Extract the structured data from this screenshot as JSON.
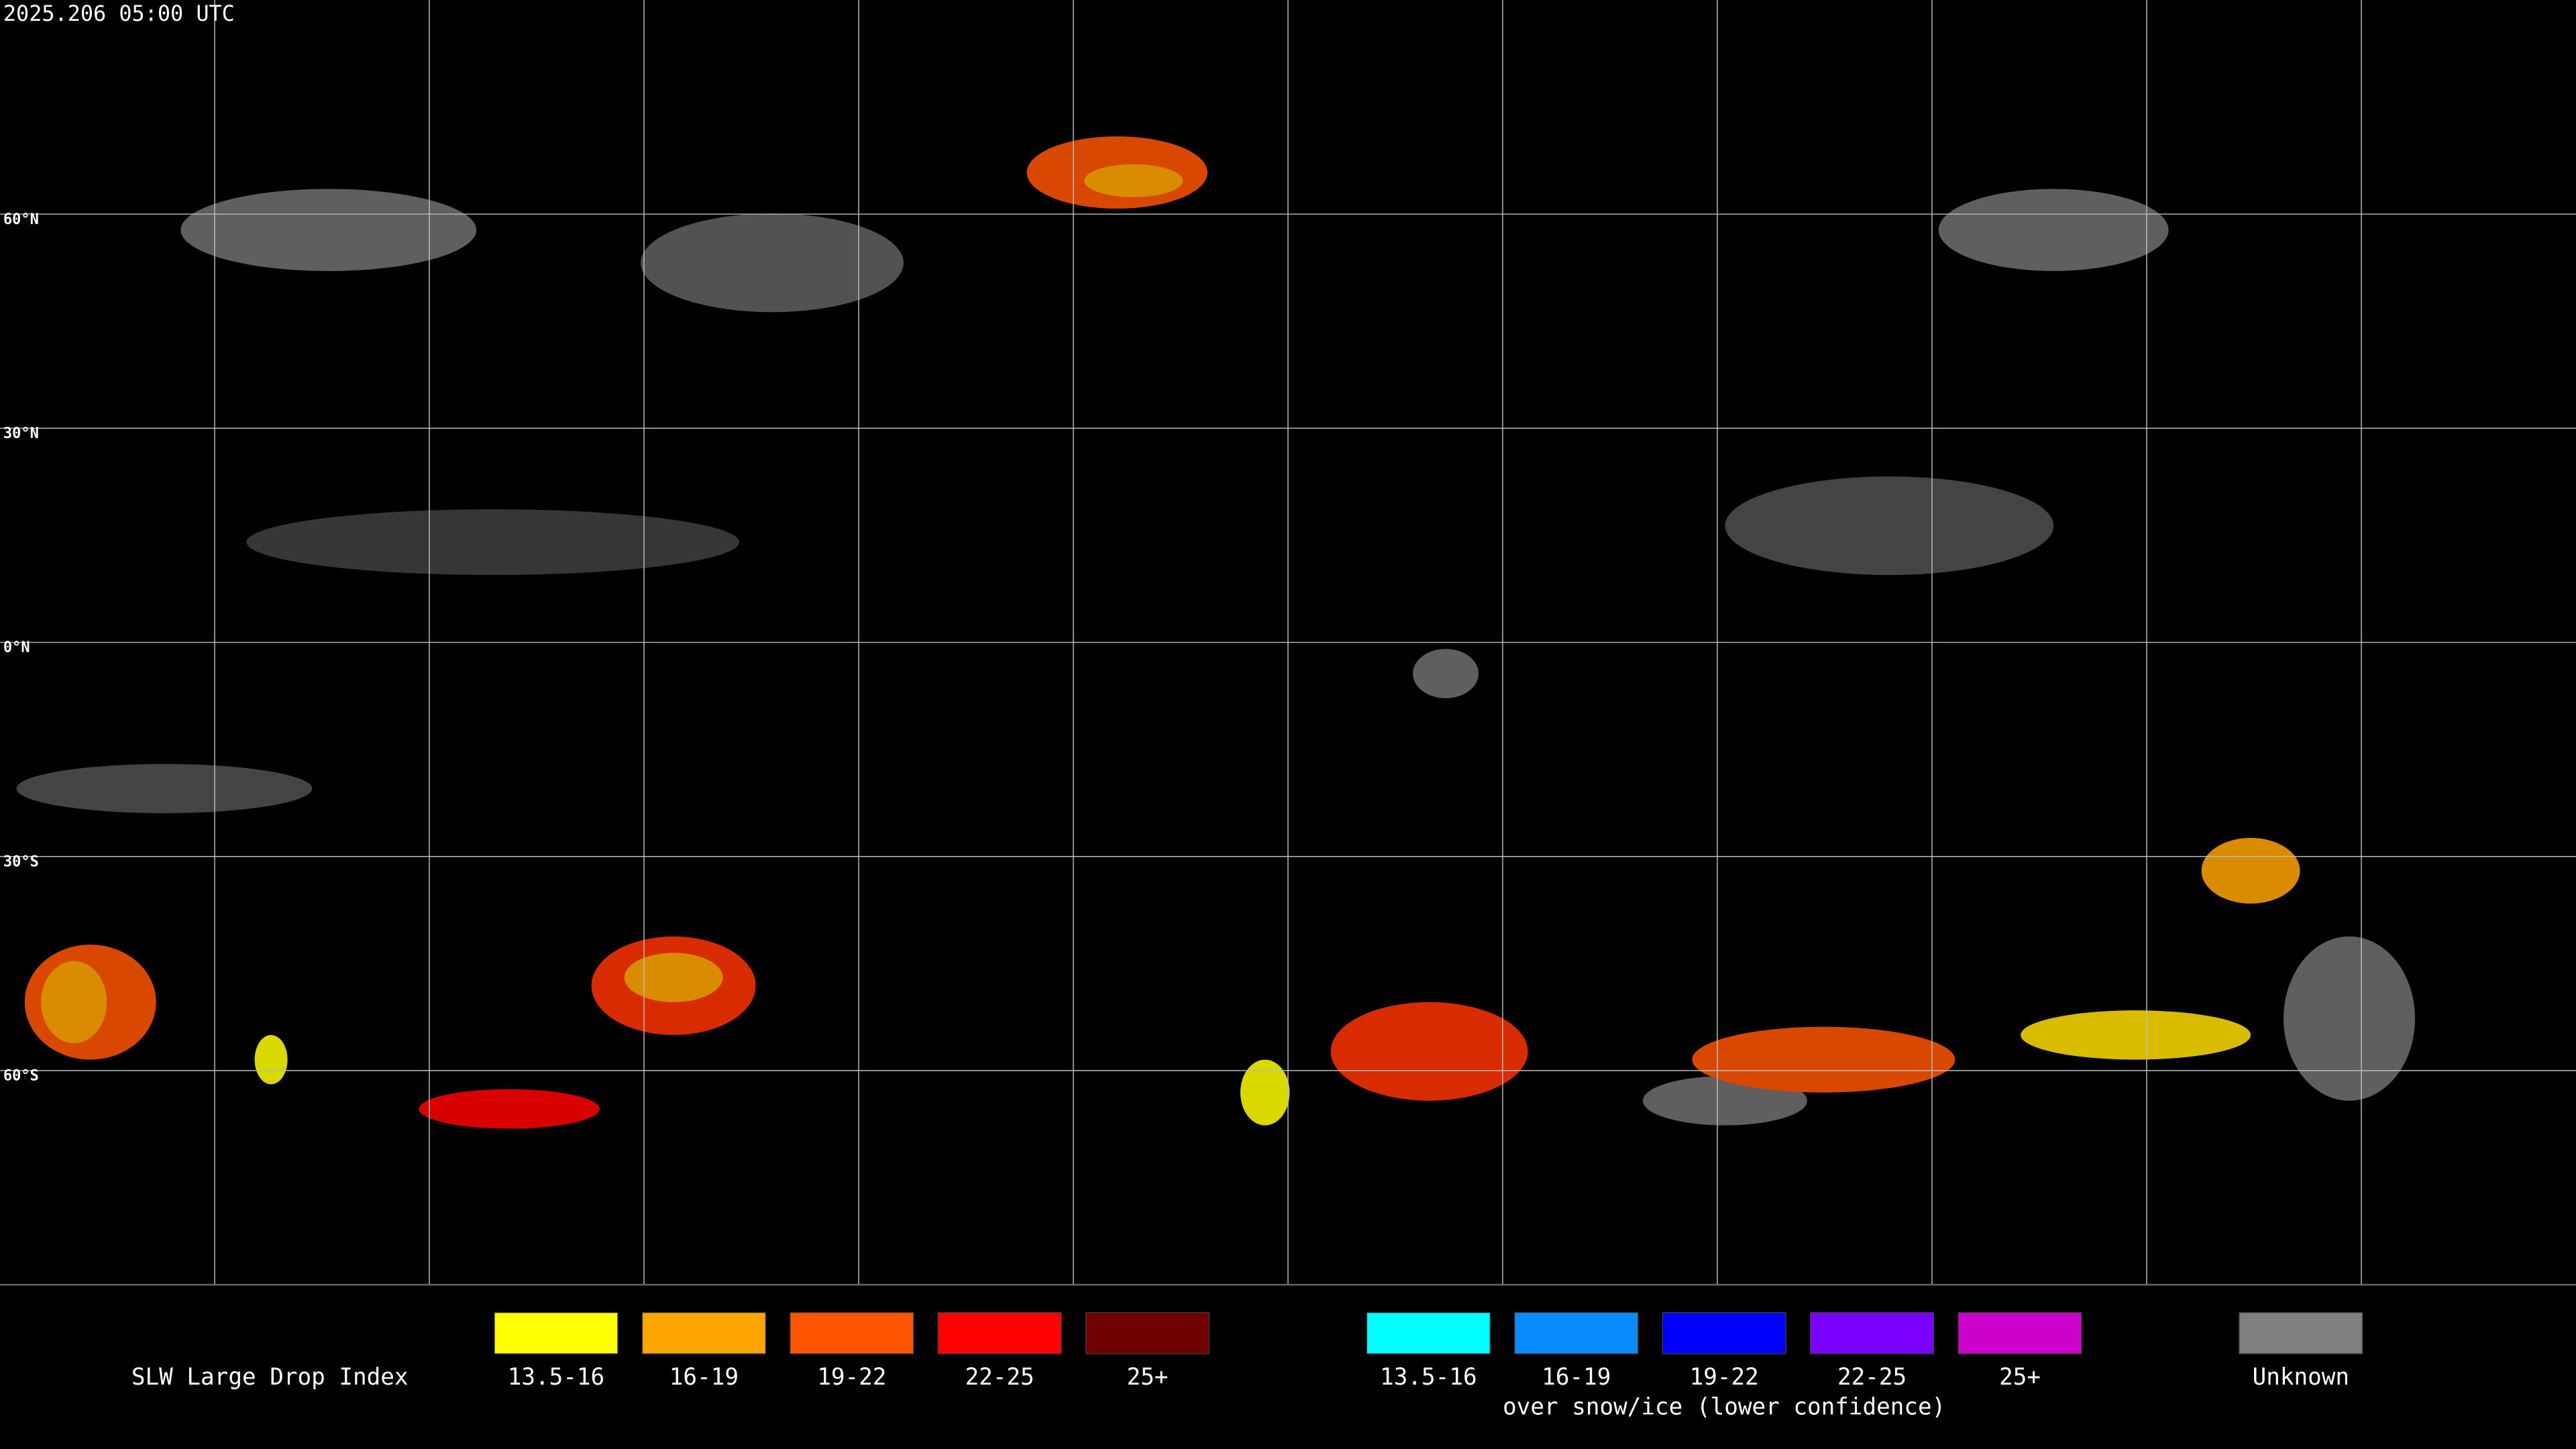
{
  "header": {
    "timestamp": "2025.206 05:00 UTC"
  },
  "map": {
    "latitude_labels": [
      "60°N",
      "30°N",
      "0°N",
      "30°S",
      "60°S"
    ]
  },
  "legend": {
    "title": "SLW Large Drop Index",
    "groups": [
      {
        "items": [
          {
            "label": "13.5-16",
            "color": "#ffff00"
          },
          {
            "label": "16-19",
            "color": "#ffa500"
          },
          {
            "label": "19-22",
            "color": "#ff5500"
          },
          {
            "label": "22-25",
            "color": "#ff0000"
          },
          {
            "label": "25+",
            "color": "#700000"
          }
        ]
      },
      {
        "items": [
          {
            "label": "13.5-16",
            "color": "#00ffff"
          },
          {
            "label": "16-19",
            "color": "#0a8cff"
          },
          {
            "label": "19-22",
            "color": "#0000ff"
          },
          {
            "label": "22-25",
            "color": "#7a00ff"
          },
          {
            "label": "25+",
            "color": "#cc00cc"
          }
        ],
        "note": "over snow/ice (lower confidence)"
      },
      {
        "items": [
          {
            "label": "Unknown",
            "color": "#808080"
          }
        ]
      }
    ]
  }
}
